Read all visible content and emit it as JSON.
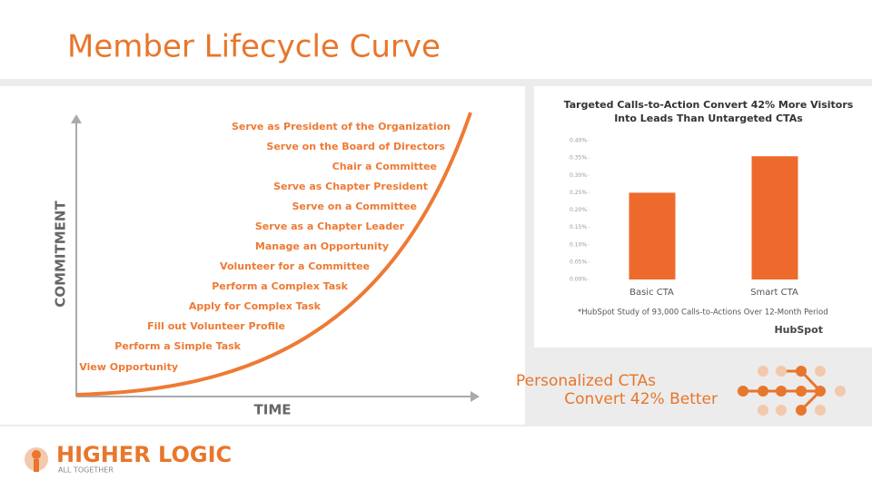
{
  "slide": {
    "title": "Member Lifecycle Curve",
    "curve": {
      "y_axis_label": "COMMITMENT",
      "x_axis_label": "TIME",
      "steps": [
        "Serve as President of the Organization",
        "Serve on the Board of Directors",
        "Chair a Committee",
        "Serve as Chapter President",
        "Serve on a Committee",
        "Serve as a Chapter Leader",
        "Manage an Opportunity",
        "Volunteer for a Committee",
        "Perform a Complex Task",
        "Apply for Complex Task",
        "Fill out Volunteer Profile",
        "Perform a Simple Task",
        "View Opportunity"
      ]
    },
    "callout": [
      "Personalized CTAs",
      "Convert 42% Better"
    ],
    "logo": {
      "name": "HIGHER LOGIC",
      "tagline": "ALL TOGETHER"
    }
  },
  "chart_data": {
    "type": "bar",
    "title": [
      "Targeted Calls-to-Action Convert 42% More Visitors",
      "Into Leads Than Untargeted CTAs"
    ],
    "categories": [
      "Basic CTA",
      "Smart CTA"
    ],
    "values": [
      0.25,
      0.355
    ],
    "color": "#ee6a2c",
    "ylim": [
      0,
      0.4
    ],
    "yticks": [
      {
        "value": 0,
        "label": "0.00%"
      },
      {
        "value": 0.05,
        "label": "0.05%"
      },
      {
        "value": 0.1,
        "label": "0.10%"
      },
      {
        "value": 0.15,
        "label": "0.15%"
      },
      {
        "value": 0.2,
        "label": "0.20%"
      },
      {
        "value": 0.25,
        "label": "0.25%"
      },
      {
        "value": 0.3,
        "label": "0.30%"
      },
      {
        "value": 0.35,
        "label": "0.35%"
      },
      {
        "value": 0.4,
        "label": "0.40%"
      }
    ],
    "footnote": "*HubSpot Study of 93,000 Calls-to-Actions Over 12-Month Period",
    "source": "HubSpot"
  }
}
